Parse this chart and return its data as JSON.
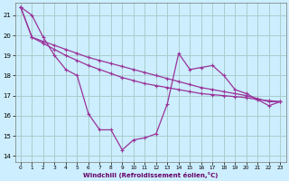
{
  "xlabel": "Windchill (Refroidissement éolien,°C)",
  "background_color": "#cceeff",
  "grid_color": "#aacccc",
  "line_color": "#993399",
  "xlim": [
    -0.5,
    23.5
  ],
  "ylim": [
    13.7,
    21.6
  ],
  "xticks": [
    0,
    1,
    2,
    3,
    4,
    5,
    6,
    7,
    8,
    9,
    10,
    11,
    12,
    13,
    14,
    15,
    16,
    17,
    18,
    19,
    20,
    21,
    22,
    23
  ],
  "yticks": [
    14,
    15,
    16,
    17,
    18,
    19,
    20,
    21
  ],
  "line1_x": [
    0,
    1,
    2,
    3,
    4,
    5,
    6,
    7,
    8,
    9,
    10,
    11,
    12,
    13,
    14,
    15,
    16,
    17,
    18,
    19,
    20,
    21,
    22,
    23
  ],
  "line1_y": [
    21.4,
    21.0,
    19.9,
    19.0,
    18.3,
    18.0,
    16.1,
    15.3,
    15.3,
    14.3,
    14.8,
    14.9,
    15.1,
    16.6,
    19.1,
    18.3,
    18.4,
    18.5,
    18.0,
    17.3,
    17.1,
    16.8,
    16.5,
    16.7
  ],
  "line2_x": [
    0,
    1,
    2,
    3,
    4,
    5,
    6,
    7,
    8,
    9,
    10,
    11,
    12,
    13,
    14,
    15,
    16,
    17,
    18,
    19,
    20,
    21,
    22,
    23
  ],
  "line2_y": [
    21.4,
    19.9,
    19.7,
    19.5,
    19.3,
    19.1,
    18.9,
    18.75,
    18.6,
    18.45,
    18.3,
    18.15,
    18.0,
    17.85,
    17.7,
    17.55,
    17.4,
    17.3,
    17.2,
    17.1,
    17.0,
    16.85,
    16.7,
    16.7
  ],
  "line3_x": [
    0,
    1,
    2,
    3,
    4,
    5,
    6,
    7,
    8,
    9,
    10,
    11,
    12,
    13,
    14,
    15,
    16,
    17,
    18,
    19,
    20,
    21,
    22,
    23
  ],
  "line3_y": [
    21.4,
    19.9,
    19.6,
    19.3,
    19.0,
    18.75,
    18.5,
    18.3,
    18.1,
    17.9,
    17.75,
    17.6,
    17.5,
    17.4,
    17.3,
    17.2,
    17.1,
    17.05,
    17.0,
    16.95,
    16.9,
    16.8,
    16.75,
    16.7
  ]
}
